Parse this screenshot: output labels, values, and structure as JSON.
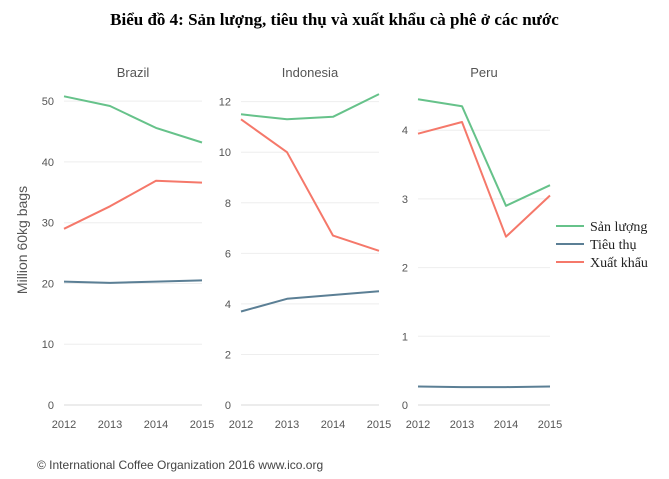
{
  "title": "Biểu đồ 4: Sản lượng, tiêu thụ và xuất khẩu cà phê ở các nước",
  "credit": "© International Coffee Organization 2016 www.ico.org",
  "chart_data": {
    "type": "line",
    "ylabel": "Million 60kg bags",
    "x": [
      "2012",
      "2013",
      "2014",
      "2015"
    ],
    "legend": {
      "placement": "right",
      "entries": [
        "Sản lượng",
        "Tiêu thụ",
        "Xuất khẩu"
      ]
    },
    "colors": {
      "Sản lượng": "#66c28a",
      "Tiêu thụ": "#5b7f95",
      "Xuất khẩu": "#f5786a"
    },
    "grid": true,
    "panels": [
      {
        "title": "Brazil",
        "ylim": [
          0,
          52
        ],
        "yticks": [
          0,
          10,
          20,
          30,
          40,
          50
        ],
        "series": [
          {
            "name": "Sản lượng",
            "values": [
              50.8,
              49.2,
              45.6,
              43.2
            ]
          },
          {
            "name": "Tiêu thụ",
            "values": [
              20.3,
              20.1,
              20.3,
              20.5
            ]
          },
          {
            "name": "Xuất khẩu",
            "values": [
              29.0,
              32.7,
              36.9,
              36.6
            ]
          }
        ]
      },
      {
        "title": "Indonesia",
        "ylim": [
          0,
          12.5
        ],
        "yticks": [
          0,
          2,
          4,
          6,
          8,
          10,
          12
        ],
        "series": [
          {
            "name": "Sản lượng",
            "values": [
              11.5,
              11.3,
              11.4,
              12.3
            ]
          },
          {
            "name": "Tiêu thụ",
            "values": [
              3.7,
              4.2,
              4.35,
              4.5
            ]
          },
          {
            "name": "Xuất khẩu",
            "values": [
              11.3,
              10.0,
              6.7,
              6.1
            ]
          }
        ]
      },
      {
        "title": "Peru",
        "ylim": [
          0,
          4.6
        ],
        "yticks": [
          0,
          1,
          2,
          3,
          4
        ],
        "series": [
          {
            "name": "Sản lượng",
            "values": [
              4.45,
              4.35,
              2.9,
              3.2
            ]
          },
          {
            "name": "Tiêu thụ",
            "values": [
              0.27,
              0.26,
              0.26,
              0.27
            ]
          },
          {
            "name": "Xuất khẩu",
            "values": [
              3.95,
              4.12,
              2.45,
              3.05
            ]
          }
        ]
      }
    ]
  }
}
